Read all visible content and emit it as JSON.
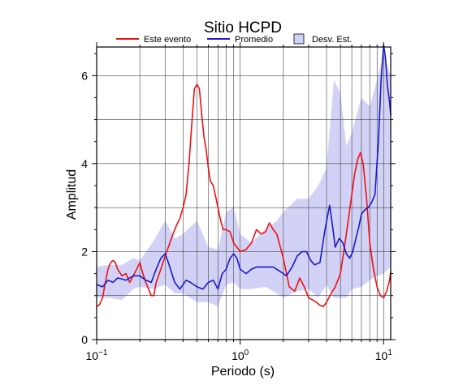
{
  "chart_data": {
    "type": "line",
    "title": "Sitio HCPD",
    "xlabel": "Periodo (s)",
    "ylabel": "Amplitud",
    "xscale": "log",
    "xlim": [
      0.1,
      11.2
    ],
    "ylim": [
      0,
      6.65
    ],
    "grid": true,
    "legend_position": "top",
    "x_ticks": [
      {
        "value": 0.1,
        "base": "10",
        "exp": "−1"
      },
      {
        "value": 1,
        "base": "10",
        "exp": "0"
      },
      {
        "value": 10,
        "base": "10",
        "exp": "1"
      }
    ],
    "y_ticks": [
      0,
      2,
      4,
      6
    ],
    "legend": [
      {
        "label": "Este evento",
        "kind": "line",
        "color": "#ee1111"
      },
      {
        "label": "Promedio",
        "kind": "line",
        "color": "#1a1acc"
      },
      {
        "label": "Desv. Est.",
        "kind": "fill",
        "color": "#d2d2f6"
      }
    ],
    "series": [
      {
        "name": "Este evento",
        "color": "#ee1111",
        "x": [
          0.1,
          0.105,
          0.11,
          0.115,
          0.12,
          0.125,
          0.13,
          0.135,
          0.14,
          0.15,
          0.16,
          0.17,
          0.18,
          0.19,
          0.2,
          0.21,
          0.22,
          0.23,
          0.24,
          0.25,
          0.26,
          0.28,
          0.3,
          0.32,
          0.34,
          0.36,
          0.38,
          0.4,
          0.42,
          0.44,
          0.46,
          0.48,
          0.5,
          0.52,
          0.54,
          0.56,
          0.58,
          0.6,
          0.62,
          0.65,
          0.68,
          0.72,
          0.76,
          0.8,
          0.85,
          0.9,
          1.0,
          1.1,
          1.2,
          1.3,
          1.4,
          1.5,
          1.6,
          1.7,
          1.8,
          2.0,
          2.2,
          2.4,
          2.6,
          2.8,
          3.0,
          3.2,
          3.4,
          3.6,
          3.8,
          4.0,
          4.3,
          4.6,
          5.0,
          5.5,
          6.0,
          6.3,
          6.6,
          6.9,
          7.2,
          7.6,
          8.0,
          8.5,
          9.0,
          9.5,
          10.0,
          10.5,
          11.0,
          11.2
        ],
        "y": [
          0.75,
          0.8,
          0.95,
          1.3,
          1.6,
          1.75,
          1.8,
          1.75,
          1.6,
          1.45,
          1.5,
          1.3,
          1.45,
          1.6,
          1.75,
          1.5,
          1.3,
          1.15,
          1.0,
          1.0,
          1.3,
          1.6,
          1.9,
          2.15,
          2.4,
          2.6,
          2.75,
          3.0,
          3.3,
          4.0,
          4.9,
          5.7,
          5.8,
          5.7,
          5.1,
          4.6,
          4.3,
          3.9,
          3.6,
          3.5,
          3.2,
          2.8,
          2.5,
          2.5,
          2.45,
          2.2,
          2.0,
          2.05,
          2.2,
          2.5,
          2.4,
          2.45,
          2.65,
          2.5,
          2.4,
          1.85,
          1.2,
          1.1,
          1.4,
          1.2,
          0.95,
          0.9,
          0.85,
          0.78,
          0.75,
          0.85,
          1.05,
          1.2,
          1.5,
          2.4,
          3.3,
          3.8,
          4.1,
          4.25,
          4.0,
          3.2,
          2.2,
          1.6,
          1.2,
          1.0,
          0.95,
          1.1,
          1.35,
          1.55
        ]
      },
      {
        "name": "Promedio",
        "color": "#1a1acc",
        "x": [
          0.1,
          0.11,
          0.12,
          0.13,
          0.14,
          0.15,
          0.16,
          0.18,
          0.2,
          0.22,
          0.24,
          0.26,
          0.28,
          0.3,
          0.32,
          0.35,
          0.38,
          0.4,
          0.42,
          0.45,
          0.5,
          0.55,
          0.6,
          0.65,
          0.7,
          0.75,
          0.8,
          0.85,
          0.9,
          0.95,
          1.0,
          1.1,
          1.2,
          1.3,
          1.5,
          1.7,
          1.9,
          2.1,
          2.3,
          2.5,
          2.7,
          2.9,
          3.1,
          3.3,
          3.6,
          3.9,
          4.2,
          4.4,
          4.6,
          4.9,
          5.2,
          5.5,
          5.8,
          6.1,
          6.4,
          6.7,
          7.0,
          7.4,
          7.8,
          8.2,
          8.7,
          9.2,
          9.6,
          10.0,
          10.3,
          10.6,
          11.0,
          11.2
        ],
        "y": [
          1.25,
          1.2,
          1.35,
          1.3,
          1.4,
          1.38,
          1.35,
          1.45,
          1.45,
          1.35,
          1.3,
          1.6,
          1.85,
          1.95,
          1.7,
          1.3,
          1.15,
          1.25,
          1.35,
          1.3,
          1.2,
          1.15,
          1.3,
          1.35,
          1.15,
          1.5,
          1.6,
          1.85,
          1.95,
          1.85,
          1.6,
          1.5,
          1.6,
          1.65,
          1.65,
          1.65,
          1.55,
          1.45,
          1.65,
          1.9,
          2.0,
          2.0,
          1.8,
          1.7,
          1.75,
          2.5,
          3.05,
          2.6,
          2.1,
          2.3,
          2.2,
          1.95,
          1.85,
          2.0,
          2.3,
          2.55,
          2.85,
          2.95,
          3.0,
          3.1,
          3.3,
          4.5,
          5.9,
          6.7,
          6.4,
          5.8,
          5.4,
          5.1
        ]
      }
    ],
    "band": {
      "name": "Desv. Est.",
      "color": "#d2d2f6",
      "x": [
        0.1,
        0.12,
        0.15,
        0.18,
        0.2,
        0.25,
        0.3,
        0.35,
        0.4,
        0.5,
        0.6,
        0.7,
        0.8,
        0.9,
        1.0,
        1.2,
        1.5,
        1.8,
        2.0,
        2.5,
        3.0,
        3.5,
        4.0,
        4.5,
        5.0,
        5.5,
        6.0,
        7.0,
        8.0,
        9.0,
        10.0,
        11.2
      ],
      "upper": [
        1.65,
        1.7,
        1.7,
        1.85,
        1.8,
        2.25,
        2.7,
        2.3,
        2.4,
        2.7,
        2.1,
        2.05,
        2.9,
        3.0,
        2.4,
        2.2,
        2.5,
        2.7,
        2.9,
        3.2,
        3.2,
        3.5,
        3.9,
        5.9,
        5.6,
        4.4,
        4.7,
        5.5,
        5.3,
        5.9,
        6.5,
        6.0
      ],
      "lower": [
        0.95,
        0.95,
        0.9,
        1.15,
        1.2,
        1.15,
        1.25,
        1.05,
        1.05,
        0.85,
        0.85,
        0.75,
        1.25,
        1.3,
        1.15,
        1.15,
        1.2,
        1.05,
        0.95,
        1.1,
        1.15,
        0.95,
        1.25,
        0.95,
        0.95,
        0.95,
        1.15,
        1.2,
        1.35,
        1.45,
        1.5,
        1.65
      ]
    }
  }
}
